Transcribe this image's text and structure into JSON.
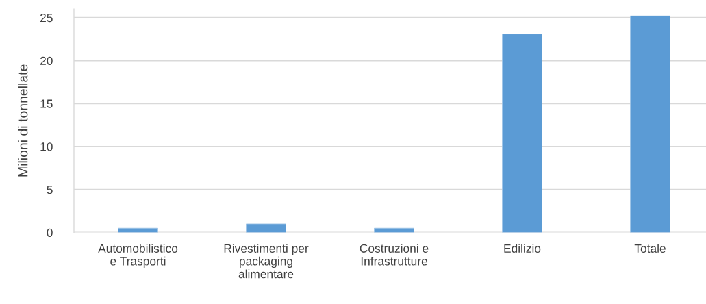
{
  "chart_data": {
    "type": "bar",
    "ylabel": "Milioni di tonnellate",
    "categories": [
      "Automobilistico\ne Trasporti",
      "Rivestimenti per\npackaging\nalimentare",
      "Costruzioni e\nInfrastrutture",
      "Edilizio",
      "Totale"
    ],
    "values": [
      0.5,
      1.0,
      0.5,
      23.1,
      25.2
    ],
    "color": "#5b9bd5",
    "ylim": [
      0,
      26
    ],
    "yticks": [
      0,
      5,
      10,
      15,
      20,
      25
    ],
    "grid": "y"
  }
}
